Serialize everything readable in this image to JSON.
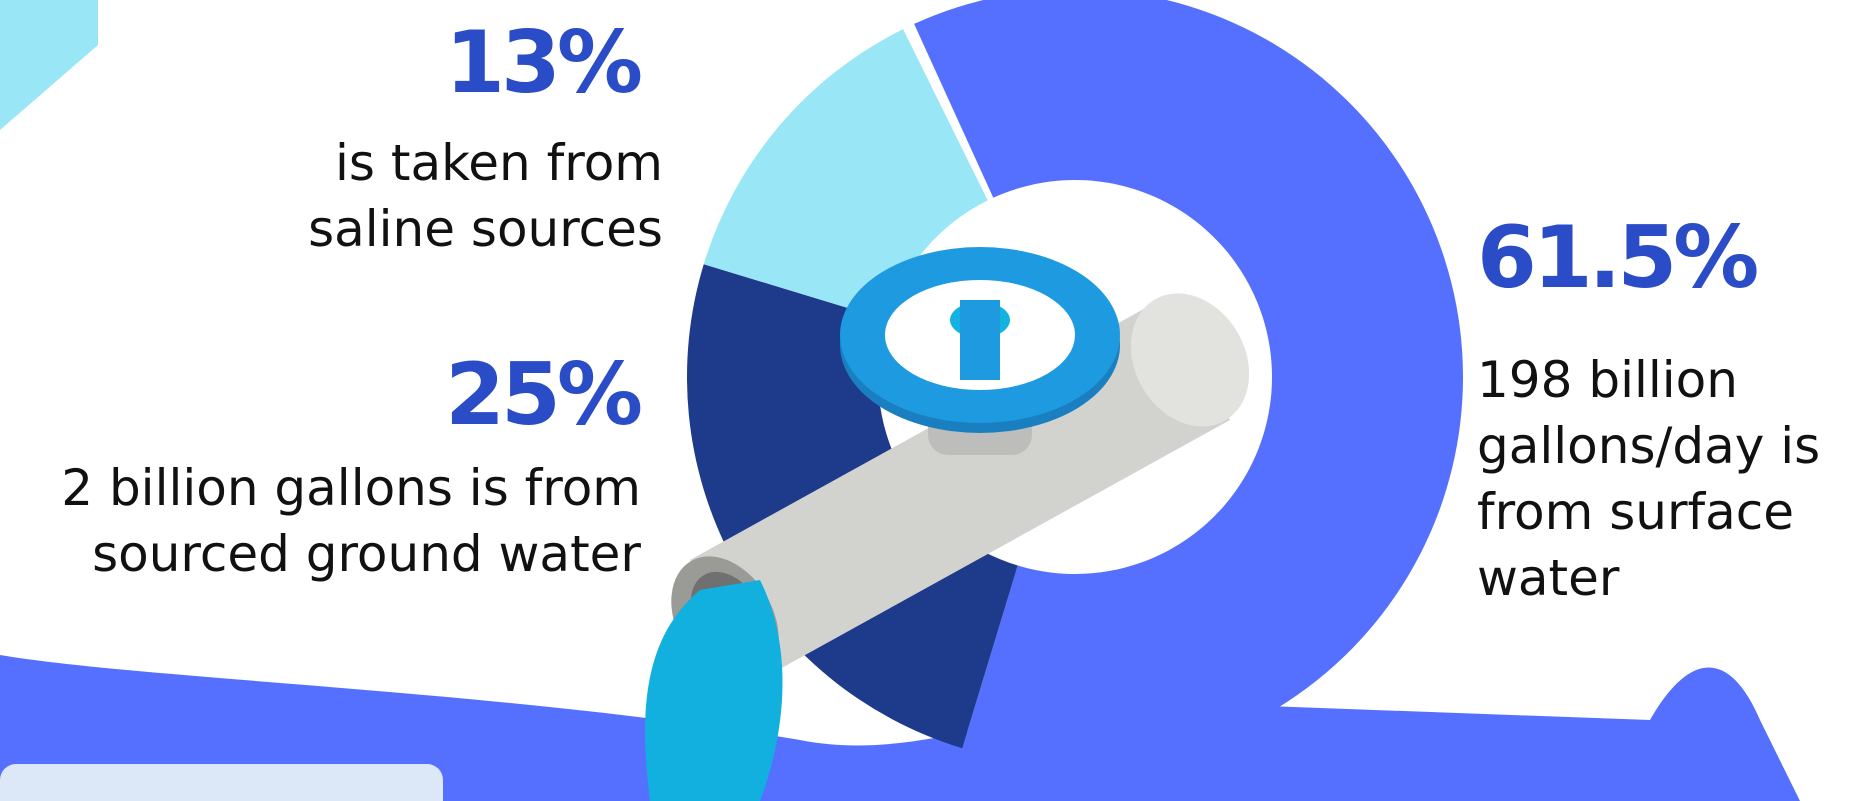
{
  "chart_data": {
    "type": "donut",
    "categories": [
      "is taken from\nsaline sources",
      "2 billion gallons is from\nsourced ground water",
      "198 billion\ngallons/day is\nfrom surface\nwater"
    ],
    "values": [
      13,
      25,
      61.5
    ],
    "value_labels": [
      "13%",
      "25%",
      "61.5%"
    ],
    "colors": [
      "#99e6f7",
      "#1e3a8a",
      "#5570ff"
    ]
  }
}
